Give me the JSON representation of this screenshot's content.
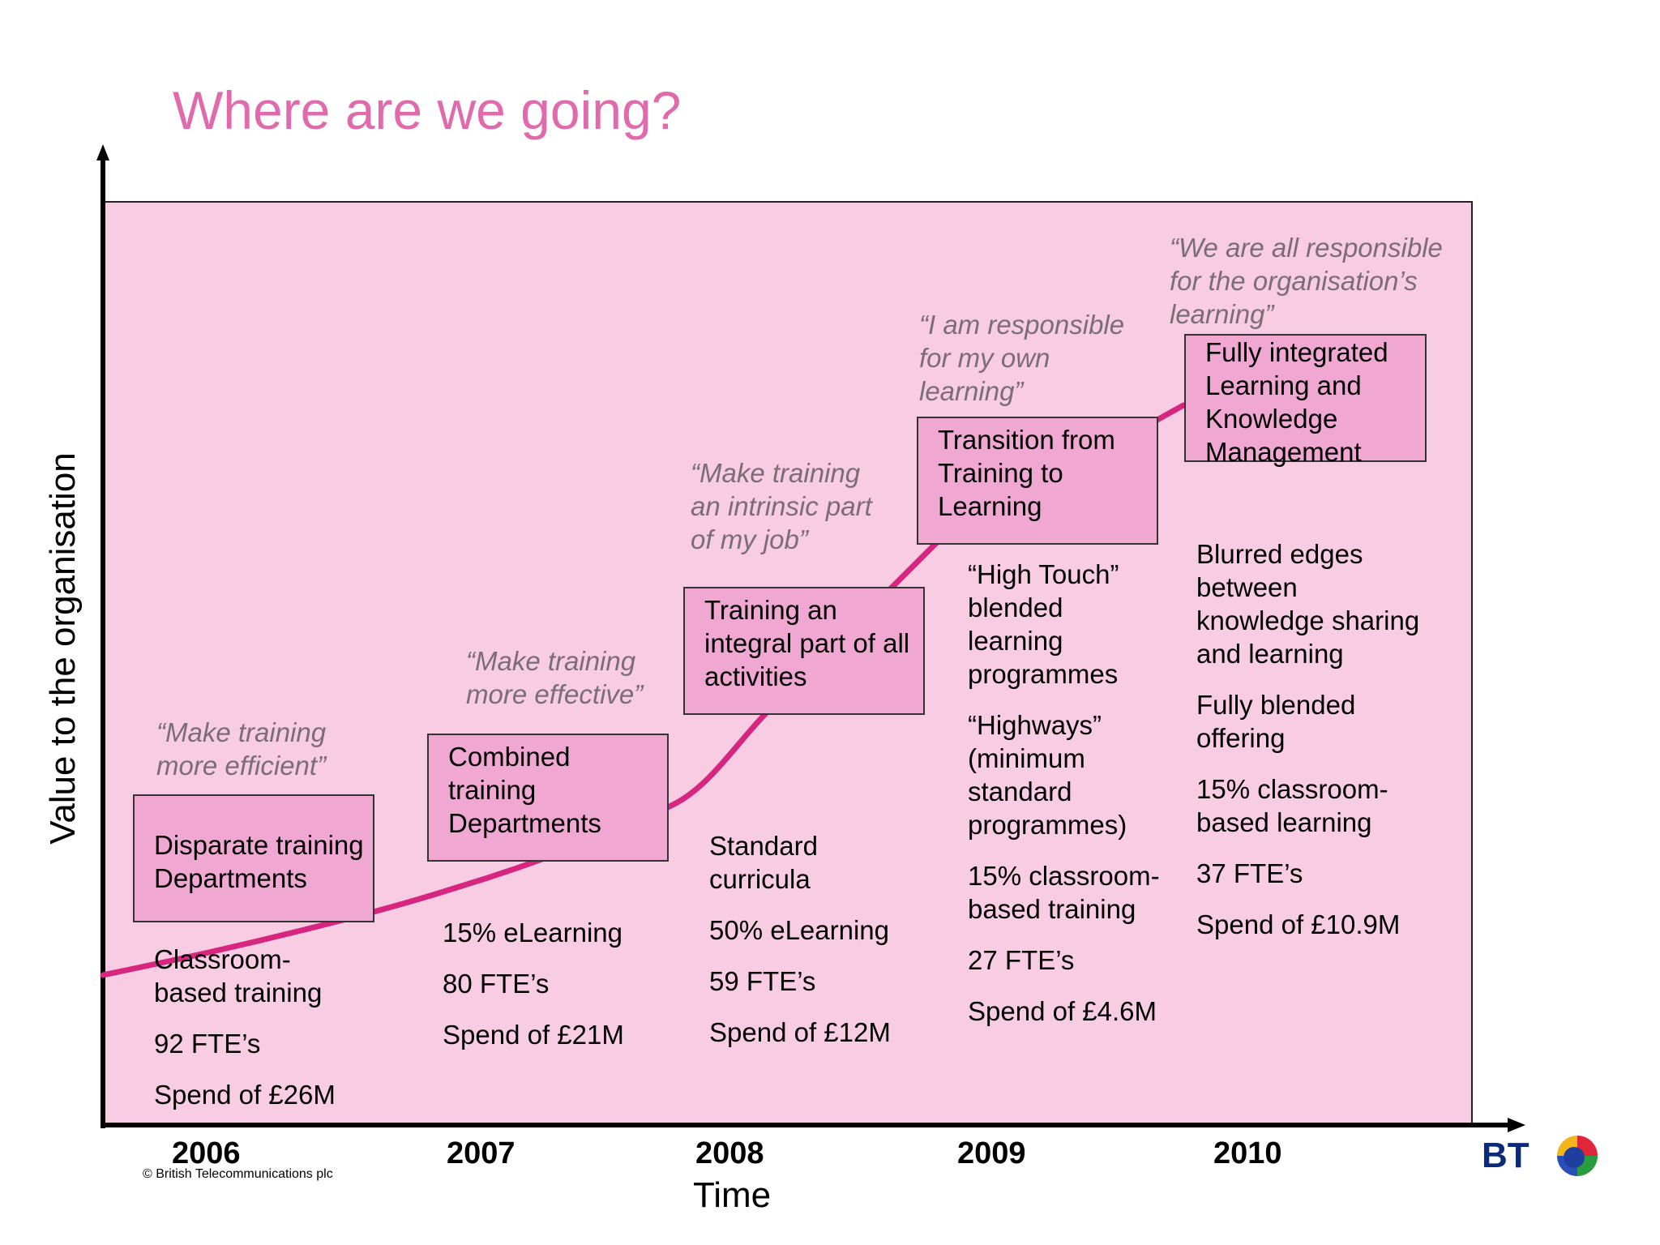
{
  "title": "Where are we going?",
  "y_axis_label": "Value to the organisation",
  "x_axis_label": "Time",
  "copyright": "© British Telecommunications plc",
  "logo_text": "BT",
  "colors": {
    "title": "#e06aac",
    "panel": "#f8cde4",
    "box": "#f0a8d2",
    "curve": "#d6267f",
    "quote": "#7a6e74"
  },
  "stages": [
    {
      "year": "2006",
      "quote": [
        "“Make training",
        "more efficient”"
      ],
      "box": [
        "Disparate training",
        "Departments"
      ],
      "details": [
        [
          "Classroom-",
          "based training"
        ],
        [
          "92 FTE’s"
        ],
        [
          "Spend of £26M"
        ]
      ]
    },
    {
      "year": "2007",
      "quote": [
        "“Make training",
        "more effective”"
      ],
      "box": [
        "Combined",
        "training",
        "Departments"
      ],
      "details": [
        [
          "15%  eLearning"
        ],
        [
          "80 FTE’s"
        ],
        [
          "Spend of £21M"
        ]
      ]
    },
    {
      "year": "2008",
      "quote": [
        "“Make training",
        "an intrinsic part",
        "of my job”"
      ],
      "box": [
        "Training an",
        "integral part of all",
        "activities"
      ],
      "details": [
        [
          "Standard",
          "curricula"
        ],
        [
          "50% eLearning"
        ],
        [
          "59 FTE’s"
        ],
        [
          "Spend of £12M"
        ]
      ]
    },
    {
      "year": "2009",
      "quote": [
        "“I am responsible",
        "for my own",
        "learning”"
      ],
      "box": [
        "Transition from",
        "Training to",
        "Learning"
      ],
      "details": [
        [
          "“High Touch”",
          "blended",
          "learning",
          "programmes"
        ],
        [
          "“Highways”",
          "(minimum",
          "standard",
          "programmes)"
        ],
        [
          "15% classroom-",
          "based training"
        ],
        [
          "27 FTE’s"
        ],
        [
          "Spend of £4.6M"
        ]
      ]
    },
    {
      "year": "2010",
      "quote": [
        "“We are all responsible",
        "for the organisation’s",
        "learning”"
      ],
      "box": [
        "Fully integrated",
        "Learning and",
        "Knowledge",
        "Management"
      ],
      "details": [
        [
          "Blurred edges",
          "between",
          "knowledge sharing",
          "and learning"
        ],
        [
          "Fully blended",
          "offering"
        ],
        [
          "15% classroom-",
          "based learning"
        ],
        [
          "37 FTE’s"
        ],
        [
          "Spend of  £10.9M"
        ]
      ]
    }
  ]
}
